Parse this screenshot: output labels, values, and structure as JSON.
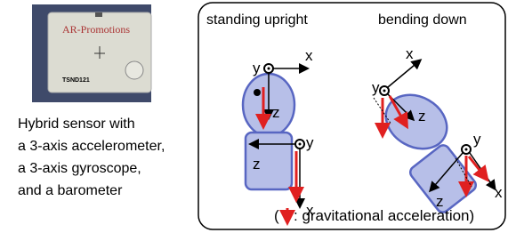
{
  "photo": {
    "brand": "AR-Promotions",
    "model": "TSND121"
  },
  "caption": [
    "Hybrid sensor with",
    "a 3-axis accelerometer,",
    "a 3-axis gyroscope,",
    "and a barometer"
  ],
  "panels": [
    {
      "title": "standing upright",
      "head_labels": [
        "y",
        "x",
        "z"
      ],
      "body_labels": [
        "y",
        "z",
        "x"
      ]
    },
    {
      "title": "bending down",
      "head_labels": [
        "y",
        "x",
        "z"
      ],
      "body_labels": [
        "y",
        "z",
        "x"
      ]
    }
  ],
  "legend": {
    "open": "(",
    "text": ": gravitational acceleration)"
  }
}
